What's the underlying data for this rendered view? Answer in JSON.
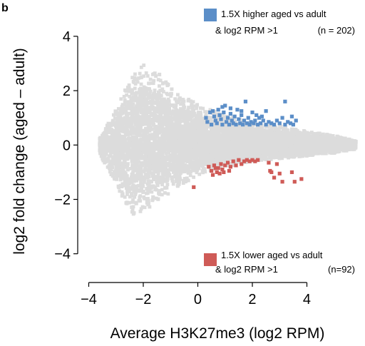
{
  "panel_label": "b",
  "chart_data": {
    "type": "scatter",
    "xlabel": "Average H3K27me3 (log2 RPM)",
    "ylabel": "log2 fold change (aged – adult)",
    "xlim": [
      -4.3,
      6.0
    ],
    "ylim": [
      -4.9,
      4.6
    ],
    "x_ticks": [
      -4,
      -2,
      0,
      2,
      4
    ],
    "x_tick_labels": [
      "−4",
      "−2",
      "0",
      "2",
      "4"
    ],
    "y_ticks": [
      -4,
      -2,
      0,
      2,
      4
    ],
    "y_tick_labels": [
      "−4",
      "−2",
      "0",
      "2",
      "4"
    ],
    "grid": false,
    "colors": {
      "background_points": "#dcdcdc",
      "higher": "#5b8ec8",
      "lower": "#cf5b57"
    },
    "legend": [
      {
        "series": "higher",
        "position": "top-right",
        "line1": "1.5X higher aged vs adult",
        "line2": "& log2 RPM >1",
        "count": "(n = 202)"
      },
      {
        "series": "lower",
        "position": "bottom-right",
        "line1": "1.5X lower aged vs adult",
        "line2": "& log2 RPM >1",
        "count": "(n=92)"
      }
    ],
    "background_cloud": {
      "points_shown": "many (gray)",
      "envelope": [
        {
          "x": -3.6,
          "upper": 0.25,
          "lower": -0.35
        },
        {
          "x": -3.0,
          "upper": 1.3,
          "lower": -1.4
        },
        {
          "x": -2.5,
          "upper": 2.4,
          "lower": -2.6
        },
        {
          "x": -2.0,
          "upper": 3.0,
          "lower": -2.5
        },
        {
          "x": -1.5,
          "upper": 2.7,
          "lower": -2.1
        },
        {
          "x": -1.0,
          "upper": 2.2,
          "lower": -1.8
        },
        {
          "x": -0.5,
          "upper": 1.8,
          "lower": -1.4
        },
        {
          "x": 0.0,
          "upper": 1.5,
          "lower": -1.1
        },
        {
          "x": 1.0,
          "upper": 1.1,
          "lower": -0.8
        },
        {
          "x": 2.0,
          "upper": 0.85,
          "lower": -0.6
        },
        {
          "x": 3.0,
          "upper": 0.7,
          "lower": -0.5
        },
        {
          "x": 4.0,
          "upper": 0.5,
          "lower": -0.4
        },
        {
          "x": 5.0,
          "upper": 0.35,
          "lower": -0.3
        },
        {
          "x": 5.8,
          "upper": 0.15,
          "lower": -0.15
        }
      ]
    },
    "highlighted_series": [
      {
        "key": "higher",
        "points": [
          [
            0.3,
            1.0
          ],
          [
            0.35,
            0.85
          ],
          [
            0.45,
            1.2
          ],
          [
            0.5,
            0.75
          ],
          [
            0.6,
            1.05
          ],
          [
            0.65,
            0.9
          ],
          [
            0.7,
            0.8
          ],
          [
            0.75,
            1.3
          ],
          [
            0.8,
            1.1
          ],
          [
            0.85,
            0.95
          ],
          [
            0.9,
            0.75
          ],
          [
            0.95,
            1.2
          ],
          [
            1.0,
            1.45
          ],
          [
            1.05,
            0.85
          ],
          [
            1.1,
            1.0
          ],
          [
            1.15,
            0.75
          ],
          [
            1.2,
            1.15
          ],
          [
            1.25,
            0.9
          ],
          [
            1.3,
            0.8
          ],
          [
            1.35,
            1.05
          ],
          [
            1.4,
            0.75
          ],
          [
            1.45,
            1.3
          ],
          [
            1.5,
            0.95
          ],
          [
            1.55,
            0.8
          ],
          [
            1.6,
            1.1
          ],
          [
            1.65,
            0.75
          ],
          [
            1.7,
            0.9
          ],
          [
            1.75,
            1.6
          ],
          [
            1.8,
            0.8
          ],
          [
            1.85,
            1.0
          ],
          [
            1.9,
            0.75
          ],
          [
            1.95,
            0.85
          ],
          [
            2.0,
            1.2
          ],
          [
            2.05,
            0.8
          ],
          [
            2.1,
            0.9
          ],
          [
            2.2,
            0.75
          ],
          [
            2.25,
            1.0
          ],
          [
            2.3,
            0.8
          ],
          [
            2.4,
            0.9
          ],
          [
            2.5,
            0.75
          ],
          [
            2.6,
            0.85
          ],
          [
            2.7,
            0.8
          ],
          [
            2.8,
            0.75
          ],
          [
            2.9,
            0.9
          ],
          [
            3.0,
            0.8
          ],
          [
            3.1,
            1.0
          ],
          [
            3.2,
            0.75
          ],
          [
            3.3,
            0.85
          ],
          [
            3.4,
            0.8
          ],
          [
            3.5,
            0.75
          ],
          [
            3.6,
            0.9
          ],
          [
            3.2,
            1.6
          ],
          [
            3.45,
            1.05
          ],
          [
            2.5,
            1.25
          ],
          [
            1.2,
            1.35
          ],
          [
            0.55,
            1.25
          ],
          [
            0.9,
            1.4
          ],
          [
            1.6,
            1.25
          ],
          [
            2.15,
            1.1
          ],
          [
            2.35,
            1.05
          ]
        ]
      },
      {
        "key": "lower",
        "points": [
          [
            0.4,
            -0.8
          ],
          [
            0.5,
            -0.95
          ],
          [
            0.6,
            -0.75
          ],
          [
            0.7,
            -1.0
          ],
          [
            0.75,
            -0.85
          ],
          [
            0.8,
            -1.05
          ],
          [
            0.85,
            -0.7
          ],
          [
            0.9,
            -0.9
          ],
          [
            1.0,
            -0.75
          ],
          [
            1.1,
            -0.65
          ],
          [
            1.2,
            -0.8
          ],
          [
            1.3,
            -0.6
          ],
          [
            1.4,
            -0.75
          ],
          [
            1.5,
            -0.55
          ],
          [
            1.6,
            -0.7
          ],
          [
            1.7,
            -0.6
          ],
          [
            1.8,
            -0.55
          ],
          [
            1.9,
            -0.6
          ],
          [
            2.0,
            -0.55
          ],
          [
            2.1,
            -0.6
          ],
          [
            2.2,
            -0.55
          ],
          [
            0.55,
            -1.1
          ],
          [
            0.65,
            -0.85
          ],
          [
            0.95,
            -1.0
          ],
          [
            -0.15,
            -1.55
          ],
          [
            2.6,
            -0.65
          ],
          [
            2.65,
            -0.95
          ],
          [
            2.7,
            -1.0
          ],
          [
            2.8,
            -1.2
          ],
          [
            2.9,
            -0.7
          ],
          [
            3.0,
            -1.05
          ],
          [
            3.1,
            -1.35
          ],
          [
            3.45,
            -1.0
          ],
          [
            3.8,
            -1.25
          ],
          [
            3.55,
            -1.35
          ],
          [
            1.15,
            -0.95
          ]
        ]
      }
    ]
  }
}
